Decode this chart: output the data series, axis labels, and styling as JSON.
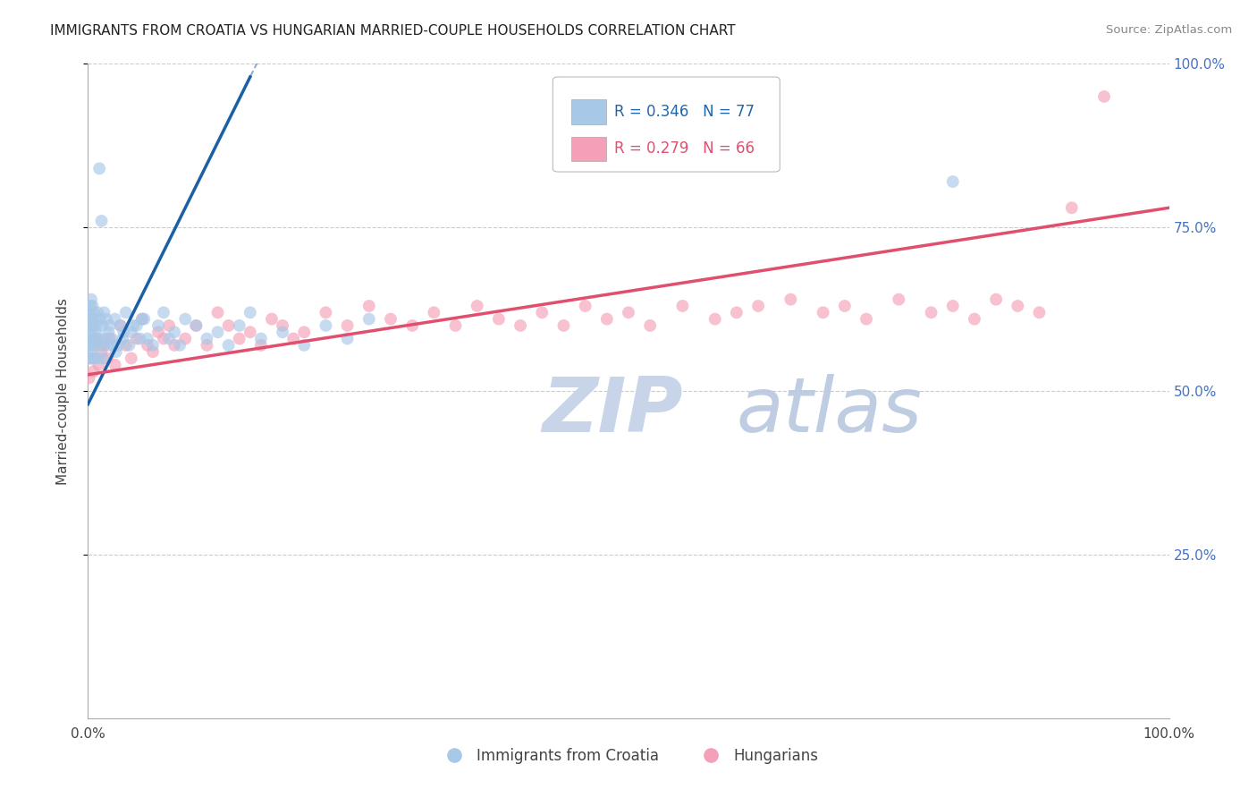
{
  "title": "IMMIGRANTS FROM CROATIA VS HUNGARIAN MARRIED-COUPLE HOUSEHOLDS CORRELATION CHART",
  "source": "Source: ZipAtlas.com",
  "ylabel": "Married-couple Households",
  "legend_blue_r": "R = 0.346",
  "legend_blue_n": "N = 77",
  "legend_pink_r": "R = 0.279",
  "legend_pink_n": "N = 66",
  "blue_color": "#a8c8e8",
  "pink_color": "#f4a0b8",
  "blue_line_color": "#1a5fa8",
  "pink_line_color": "#e0506e",
  "blue_scatter_alpha": 0.65,
  "pink_scatter_alpha": 0.65,
  "scatter_size": 100,
  "blue_x": [
    0.05,
    0.08,
    0.1,
    0.12,
    0.15,
    0.18,
    0.2,
    0.22,
    0.25,
    0.28,
    0.3,
    0.32,
    0.35,
    0.38,
    0.4,
    0.42,
    0.45,
    0.48,
    0.5,
    0.55,
    0.6,
    0.65,
    0.7,
    0.75,
    0.8,
    0.85,
    0.9,
    1.0,
    1.1,
    1.2,
    1.3,
    1.4,
    1.5,
    1.6,
    1.7,
    1.8,
    1.9,
    2.0,
    2.2,
    2.5,
    2.8,
    3.0,
    3.2,
    3.5,
    3.8,
    4.0,
    4.5,
    5.0,
    5.5,
    6.0,
    6.5,
    7.0,
    7.5,
    8.0,
    8.5,
    9.0,
    10.0,
    11.0,
    12.0,
    13.0,
    14.0,
    15.0,
    16.0,
    18.0,
    20.0,
    22.0,
    24.0,
    26.0,
    2.3,
    3.3,
    4.2,
    4.8,
    5.2,
    1.05,
    1.25,
    2.6,
    80.0
  ],
  "blue_y": [
    57.0,
    60.0,
    55.0,
    62.0,
    58.0,
    61.0,
    56.0,
    63.0,
    59.0,
    57.0,
    64.0,
    60.0,
    55.0,
    61.0,
    58.0,
    63.0,
    57.0,
    60.0,
    62.0,
    58.0,
    55.0,
    61.0,
    59.0,
    57.0,
    60.0,
    55.0,
    62.0,
    58.0,
    61.0,
    57.0,
    60.0,
    55.0,
    62.0,
    58.0,
    61.0,
    57.0,
    59.0,
    60.0,
    58.0,
    61.0,
    57.0,
    60.0,
    58.0,
    62.0,
    57.0,
    59.0,
    60.0,
    61.0,
    58.0,
    57.0,
    60.0,
    62.0,
    58.0,
    59.0,
    57.0,
    61.0,
    60.0,
    58.0,
    59.0,
    57.0,
    60.0,
    62.0,
    58.0,
    59.0,
    57.0,
    60.0,
    58.0,
    61.0,
    57.0,
    59.0,
    60.0,
    58.0,
    61.0,
    84.0,
    76.0,
    56.0,
    82.0
  ],
  "pink_x": [
    0.1,
    0.3,
    0.5,
    0.8,
    1.0,
    1.2,
    1.5,
    1.8,
    2.0,
    2.5,
    3.0,
    3.5,
    4.0,
    4.5,
    5.0,
    5.5,
    6.0,
    6.5,
    7.0,
    7.5,
    8.0,
    9.0,
    10.0,
    11.0,
    12.0,
    13.0,
    14.0,
    15.0,
    16.0,
    17.0,
    18.0,
    19.0,
    20.0,
    22.0,
    24.0,
    26.0,
    28.0,
    30.0,
    32.0,
    34.0,
    36.0,
    38.0,
    40.0,
    42.0,
    44.0,
    46.0,
    48.0,
    50.0,
    52.0,
    55.0,
    58.0,
    60.0,
    62.0,
    65.0,
    68.0,
    70.0,
    72.0,
    75.0,
    78.0,
    80.0,
    82.0,
    84.0,
    86.0,
    88.0,
    91.0,
    94.0
  ],
  "pink_y": [
    52.0,
    55.0,
    53.0,
    58.0,
    54.0,
    56.0,
    57.0,
    55.0,
    58.0,
    54.0,
    60.0,
    57.0,
    55.0,
    58.0,
    61.0,
    57.0,
    56.0,
    59.0,
    58.0,
    60.0,
    57.0,
    58.0,
    60.0,
    57.0,
    62.0,
    60.0,
    58.0,
    59.0,
    57.0,
    61.0,
    60.0,
    58.0,
    59.0,
    62.0,
    60.0,
    63.0,
    61.0,
    60.0,
    62.0,
    60.0,
    63.0,
    61.0,
    60.0,
    62.0,
    60.0,
    63.0,
    61.0,
    62.0,
    60.0,
    63.0,
    61.0,
    62.0,
    63.0,
    64.0,
    62.0,
    63.0,
    61.0,
    64.0,
    62.0,
    63.0,
    61.0,
    64.0,
    63.0,
    62.0,
    78.0,
    95.0
  ],
  "blue_line_x0": 0.0,
  "blue_line_y0": 48.0,
  "blue_line_x1": 15.0,
  "blue_line_y1": 98.0,
  "pink_line_x0": 0.0,
  "pink_line_y0": 52.5,
  "pink_line_x1": 100.0,
  "pink_line_y1": 78.0,
  "xlim": [
    0,
    100
  ],
  "ylim": [
    0,
    100
  ],
  "yticks": [
    25,
    50,
    75,
    100
  ],
  "xticks": [
    0,
    100
  ],
  "y_right_labels": [
    "25.0%",
    "50.0%",
    "75.0%",
    "100.0%"
  ],
  "x_labels": [
    "0.0%",
    "100.0%"
  ],
  "title_fontsize": 11,
  "watermark_zip_color": "#c8d4e8",
  "watermark_atlas_color": "#b8c8e0"
}
